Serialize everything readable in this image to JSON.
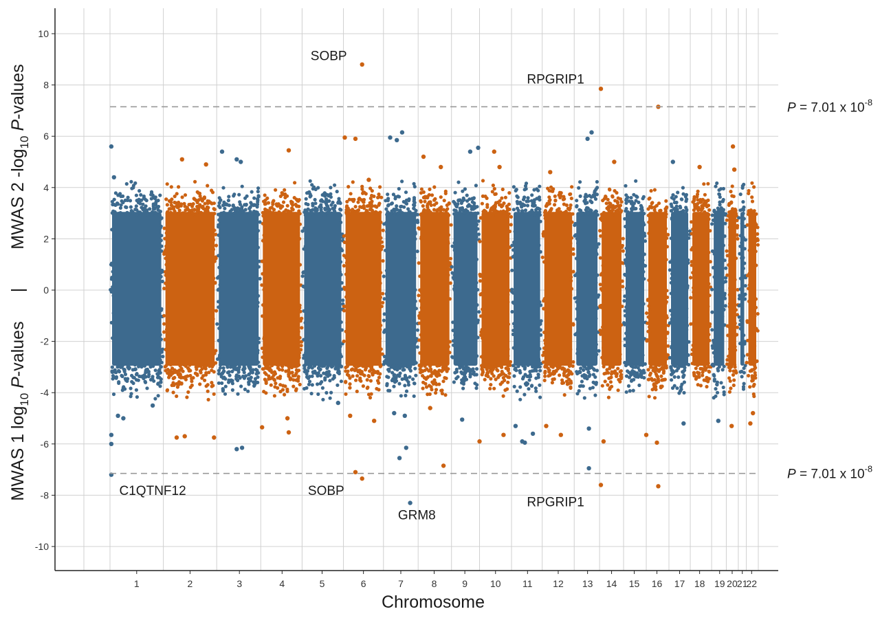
{
  "chart_data": {
    "type": "scatter",
    "subtype": "mirrored-manhattan",
    "xlabel": "Chromosome",
    "ylabel": {
      "top": {
        "prefix": "MWAS 2 -log",
        "sub": "10",
        "italic": "P",
        "suffix": "-values"
      },
      "separator": "|",
      "bottom": {
        "prefix": "MWAS 1 log",
        "sub": "10",
        "italic": "P",
        "suffix": "-values"
      }
    },
    "ylim": [
      -11,
      11
    ],
    "yticks": [
      -10,
      -8,
      -6,
      -4,
      -2,
      0,
      2,
      4,
      6,
      8,
      10
    ],
    "xlim": [
      -3,
      23.5
    ],
    "grid": true,
    "colors": {
      "odd": "#3d6a8e",
      "even": "#cc6212",
      "threshold": "#999999",
      "grid": "#d0d0d0",
      "axis": "#222222"
    },
    "chromosomes": [
      {
        "label": "1",
        "start": 0,
        "end": 2,
        "tick": 1
      },
      {
        "label": "2",
        "start": 2,
        "end": 4,
        "tick": 3
      },
      {
        "label": "3",
        "start": 4,
        "end": 5.65,
        "tick": 4.85
      },
      {
        "label": "4",
        "start": 5.65,
        "end": 7.2,
        "tick": 6.45
      },
      {
        "label": "5",
        "start": 7.2,
        "end": 8.75,
        "tick": 7.95
      },
      {
        "label": "6",
        "start": 8.75,
        "end": 10.25,
        "tick": 9.5
      },
      {
        "label": "7",
        "start": 10.25,
        "end": 11.55,
        "tick": 10.9
      },
      {
        "label": "8",
        "start": 11.55,
        "end": 12.8,
        "tick": 12.15
      },
      {
        "label": "9",
        "start": 12.8,
        "end": 13.85,
        "tick": 13.3
      },
      {
        "label": "10",
        "start": 13.85,
        "end": 15.05,
        "tick": 14.45
      },
      {
        "label": "11",
        "start": 15.05,
        "end": 16.2,
        "tick": 15.65
      },
      {
        "label": "12",
        "start": 16.2,
        "end": 17.4,
        "tick": 16.8
      },
      {
        "label": "13",
        "start": 17.4,
        "end": 18.35,
        "tick": 17.9
      },
      {
        "label": "14",
        "start": 18.35,
        "end": 19.25,
        "tick": 18.8
      },
      {
        "label": "15",
        "start": 19.25,
        "end": 20.1,
        "tick": 19.65
      },
      {
        "label": "16",
        "start": 20.1,
        "end": 20.95,
        "tick": 20.5
      },
      {
        "label": "17",
        "start": 20.95,
        "end": 21.75,
        "tick": 21.35
      },
      {
        "label": "18",
        "start": 21.75,
        "end": 22.55,
        "tick": 22.1
      },
      {
        "label": "19",
        "start": 22.55,
        "end": 23.1,
        "tick": 22.85
      },
      {
        "label": "20",
        "start": 23.1,
        "end": 23.55,
        "tick": 23.32
      },
      {
        "label": "21",
        "start": 23.55,
        "end": 23.85,
        "tick": 23.7
      },
      {
        "label": "22",
        "start": 23.85,
        "end": 24.3,
        "tick": 24.05
      }
    ],
    "thresholds": [
      {
        "y": 7.15,
        "label_prefix": "P",
        "label_mid": " = 7.01 x 10",
        "label_exp": "-8"
      },
      {
        "y": -7.15,
        "label_prefix": "P",
        "label_mid": " = 7.01 x 10",
        "label_exp": "-8"
      }
    ],
    "annotations": [
      {
        "text": "SOBP",
        "x": 8.2,
        "y": 9.15
      },
      {
        "text": "RPGRIP1",
        "x": 16.7,
        "y": 8.25
      },
      {
        "text": "C1QTNF12",
        "x": 1.6,
        "y": -7.8
      },
      {
        "text": "SOBP",
        "x": 8.1,
        "y": -7.8
      },
      {
        "text": "GRM8",
        "x": 11.5,
        "y": -8.75
      },
      {
        "text": "RPGRIP1",
        "x": 16.7,
        "y": -8.25
      }
    ],
    "notable_points": [
      {
        "x": 0.05,
        "y": 5.6
      },
      {
        "x": 0.05,
        "y": -5.65
      },
      {
        "x": 0.05,
        "y": -6.0
      },
      {
        "x": 0.05,
        "y": -7.2
      },
      {
        "x": 0.15,
        "y": 4.4
      },
      {
        "x": 0.3,
        "y": -4.9
      },
      {
        "x": 0.5,
        "y": -5.0
      },
      {
        "x": 1.6,
        "y": -4.5
      },
      {
        "x": 2.5,
        "y": -5.75
      },
      {
        "x": 2.7,
        "y": 5.1
      },
      {
        "x": 2.8,
        "y": -5.7
      },
      {
        "x": 3.6,
        "y": 4.9
      },
      {
        "x": 3.9,
        "y": -5.75
      },
      {
        "x": 4.2,
        "y": 5.4
      },
      {
        "x": 4.75,
        "y": 5.1
      },
      {
        "x": 4.9,
        "y": 5.0
      },
      {
        "x": 4.75,
        "y": -6.2
      },
      {
        "x": 4.95,
        "y": -6.15
      },
      {
        "x": 5.7,
        "y": -5.35
      },
      {
        "x": 6.7,
        "y": 5.45
      },
      {
        "x": 6.65,
        "y": -5.0
      },
      {
        "x": 6.7,
        "y": -5.55
      },
      {
        "x": 8.55,
        "y": -4.4
      },
      {
        "x": 8.8,
        "y": 5.95
      },
      {
        "x": 9.2,
        "y": 5.9
      },
      {
        "x": 9.0,
        "y": -4.9
      },
      {
        "x": 9.45,
        "y": 8.8
      },
      {
        "x": 9.2,
        "y": -7.1
      },
      {
        "x": 9.45,
        "y": -7.35
      },
      {
        "x": 9.7,
        "y": 4.3
      },
      {
        "x": 9.9,
        "y": -5.1
      },
      {
        "x": 10.5,
        "y": 5.95
      },
      {
        "x": 10.75,
        "y": 5.85
      },
      {
        "x": 10.95,
        "y": 6.15
      },
      {
        "x": 10.65,
        "y": -4.8
      },
      {
        "x": 10.85,
        "y": -6.55
      },
      {
        "x": 11.05,
        "y": -4.9
      },
      {
        "x": 11.25,
        "y": -8.3
      },
      {
        "x": 11.1,
        "y": -6.15
      },
      {
        "x": 11.75,
        "y": 5.2
      },
      {
        "x": 12.4,
        "y": 4.8
      },
      {
        "x": 12.5,
        "y": -6.85
      },
      {
        "x": 12.0,
        "y": -4.6
      },
      {
        "x": 13.2,
        "y": -5.05
      },
      {
        "x": 13.5,
        "y": 5.4
      },
      {
        "x": 13.8,
        "y": 5.55
      },
      {
        "x": 13.85,
        "y": -5.9
      },
      {
        "x": 14.4,
        "y": 5.4
      },
      {
        "x": 14.75,
        "y": -5.65
      },
      {
        "x": 14.6,
        "y": 4.8
      },
      {
        "x": 15.2,
        "y": -5.3
      },
      {
        "x": 15.45,
        "y": -5.9
      },
      {
        "x": 15.55,
        "y": -5.95
      },
      {
        "x": 15.85,
        "y": -5.6
      },
      {
        "x": 16.35,
        "y": -5.3
      },
      {
        "x": 16.5,
        "y": 4.6
      },
      {
        "x": 16.9,
        "y": -5.65
      },
      {
        "x": 17.9,
        "y": 5.9
      },
      {
        "x": 18.05,
        "y": 6.15
      },
      {
        "x": 17.95,
        "y": -5.4
      },
      {
        "x": 17.95,
        "y": -6.95
      },
      {
        "x": 18.4,
        "y": 7.85
      },
      {
        "x": 18.4,
        "y": -7.6
      },
      {
        "x": 18.5,
        "y": -5.9
      },
      {
        "x": 18.9,
        "y": 5.0
      },
      {
        "x": 20.1,
        "y": -5.65
      },
      {
        "x": 20.55,
        "y": 7.15
      },
      {
        "x": 20.55,
        "y": -7.65
      },
      {
        "x": 20.5,
        "y": -5.95
      },
      {
        "x": 21.1,
        "y": 5.0
      },
      {
        "x": 21.5,
        "y": -5.2
      },
      {
        "x": 22.1,
        "y": 4.8
      },
      {
        "x": 22.8,
        "y": -5.1
      },
      {
        "x": 23.35,
        "y": 5.6
      },
      {
        "x": 23.4,
        "y": 4.7
      },
      {
        "x": 23.3,
        "y": -5.3
      },
      {
        "x": 24.0,
        "y": -5.2
      },
      {
        "x": 24.1,
        "y": -4.8
      }
    ]
  }
}
